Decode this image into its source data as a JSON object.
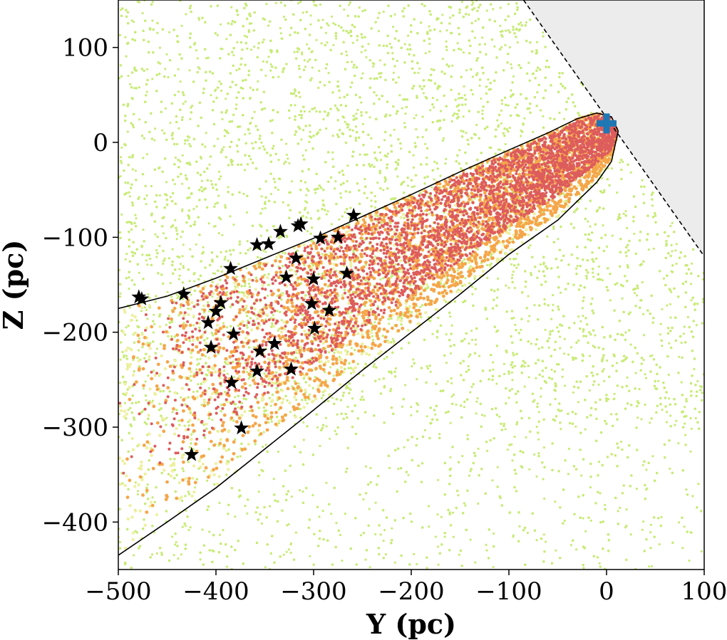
{
  "chart_data": {
    "type": "scatter",
    "title": "",
    "xlabel": "Y (pc)",
    "ylabel": "Z (pc)",
    "xlim": [
      -500,
      100
    ],
    "ylim": [
      -450,
      150
    ],
    "xticks": [
      -500,
      -400,
      -300,
      -200,
      -100,
      0,
      100
    ],
    "yticks": [
      -400,
      -300,
      -200,
      -100,
      0,
      100
    ],
    "xtick_labels": [
      "−500",
      "−400",
      "−300",
      "−200",
      "−100",
      "0",
      "100"
    ],
    "ytick_labels": [
      "−400",
      "−300",
      "−200",
      "−100",
      "0",
      "100"
    ],
    "grid": false,
    "colors": {
      "background_population": "#c8eb77",
      "excluded_region": "#ececec",
      "pale_population": "#eef0a0",
      "orange_population": "#f5a64a",
      "red_population": "#dd5c5c",
      "star_markers": "#000000",
      "origin_marker": "#1f77b4"
    },
    "origin_marker": {
      "y": 0,
      "z": 20,
      "icon": "plus-icon"
    },
    "excluded_region_boundary": [
      [
        -85,
        150
      ],
      [
        100,
        -120
      ]
    ],
    "selection_boundary": {
      "upper": [
        [
          -500,
          -175
        ],
        [
          -450,
          -162
        ],
        [
          -400,
          -143
        ],
        [
          -350,
          -122
        ],
        [
          -300,
          -101
        ],
        [
          -250,
          -78
        ],
        [
          -200,
          -55
        ],
        [
          -150,
          -31
        ],
        [
          -100,
          -8
        ],
        [
          -60,
          10
        ],
        [
          -30,
          25
        ],
        [
          -10,
          31
        ],
        [
          5,
          27
        ],
        [
          12,
          12
        ]
      ],
      "lower": [
        [
          12,
          12
        ],
        [
          5,
          -20
        ],
        [
          -10,
          -42
        ],
        [
          -50,
          -82
        ],
        [
          -100,
          -118
        ],
        [
          -150,
          -160
        ],
        [
          -200,
          -200
        ],
        [
          -250,
          -240
        ],
        [
          -300,
          -282
        ],
        [
          -350,
          -323
        ],
        [
          -400,
          -364
        ],
        [
          -450,
          -400
        ],
        [
          -500,
          -435
        ]
      ]
    },
    "star_members": [
      {
        "y": -479,
        "z": -163
      },
      {
        "y": -476,
        "z": -165
      },
      {
        "y": -433,
        "z": -160
      },
      {
        "y": -425,
        "z": -329
      },
      {
        "y": -408,
        "z": -190
      },
      {
        "y": -405,
        "z": -216
      },
      {
        "y": -400,
        "z": -178
      },
      {
        "y": -395,
        "z": -169
      },
      {
        "y": -385,
        "z": -133
      },
      {
        "y": -384,
        "z": -253
      },
      {
        "y": -382,
        "z": -202
      },
      {
        "y": -374,
        "z": -301
      },
      {
        "y": -358,
        "z": -108
      },
      {
        "y": -358,
        "z": -241
      },
      {
        "y": -355,
        "z": -220
      },
      {
        "y": -346,
        "z": -107
      },
      {
        "y": -340,
        "z": -212
      },
      {
        "y": -334,
        "z": -94
      },
      {
        "y": -328,
        "z": -142
      },
      {
        "y": -323,
        "z": -239
      },
      {
        "y": -318,
        "z": -122
      },
      {
        "y": -316,
        "z": -88
      },
      {
        "y": -313,
        "z": -86
      },
      {
        "y": -302,
        "z": -170
      },
      {
        "y": -300,
        "z": -144
      },
      {
        "y": -299,
        "z": -196
      },
      {
        "y": -293,
        "z": -101
      },
      {
        "y": -284,
        "z": -177
      },
      {
        "y": -275,
        "z": -100
      },
      {
        "y": -266,
        "z": -138
      },
      {
        "y": -259,
        "z": -77
      }
    ]
  }
}
